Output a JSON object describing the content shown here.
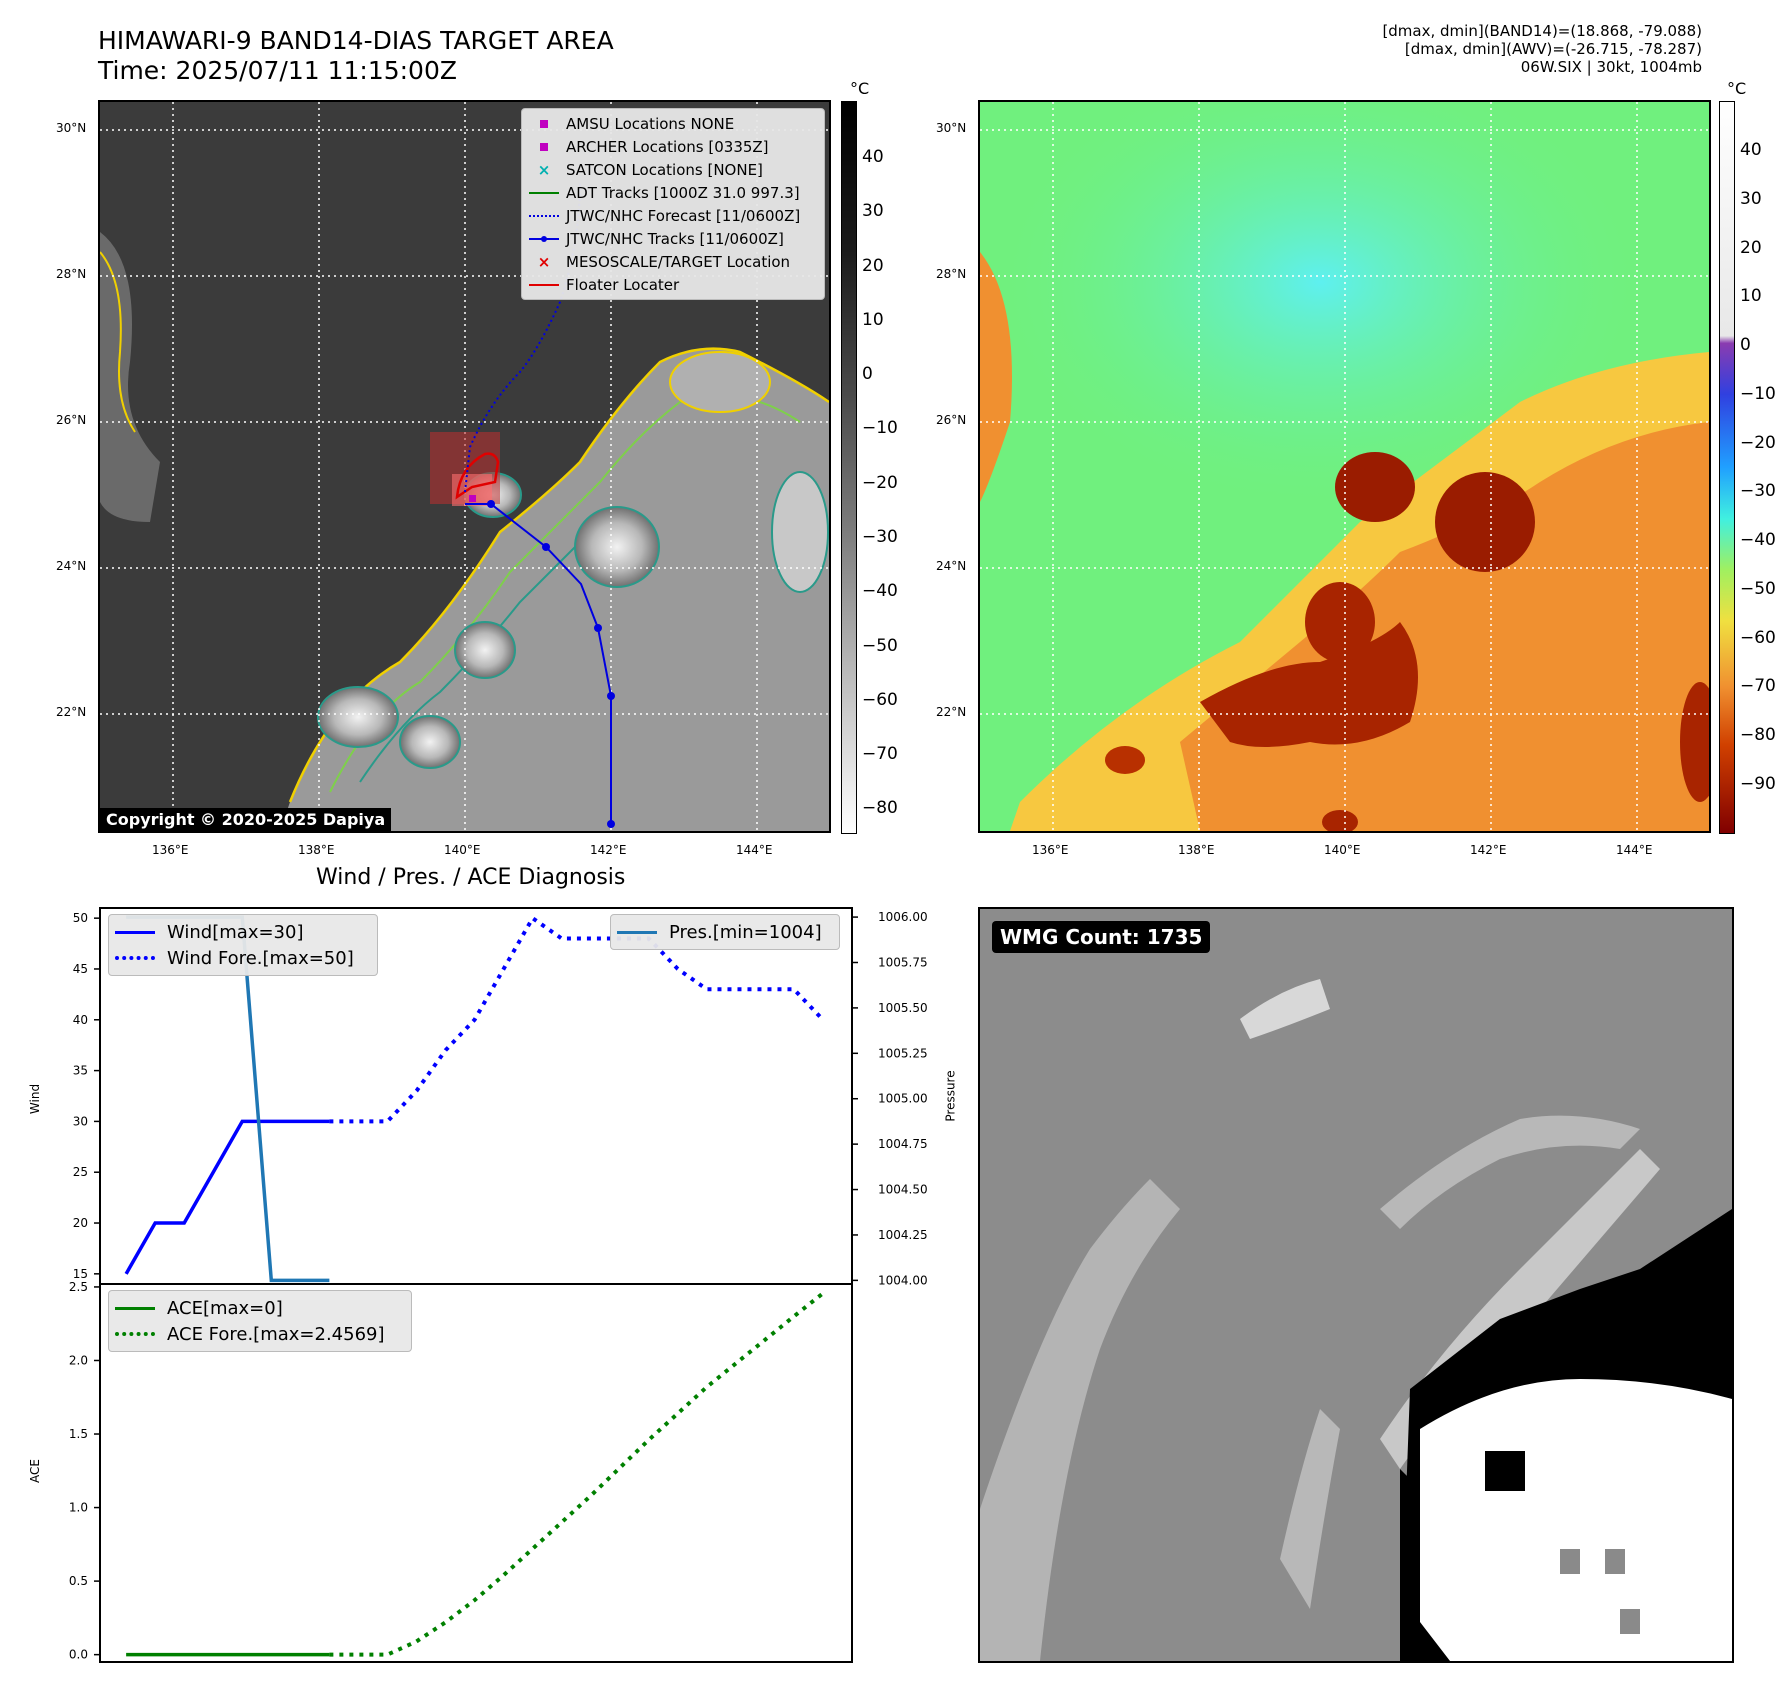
{
  "header": {
    "title_line1": "HIMAWARI-9 BAND14-DIAS TARGET AREA",
    "title_line2": "Time: 2025/07/11 11:15:00Z",
    "info_line1": "[dmax, dmin](BAND14)=(18.868, -79.088)",
    "info_line2": "[dmax, dmin](AWV)=(-26.715, -78.287)",
    "info_line3": "06W.SIX | 30kt, 1004mb"
  },
  "map": {
    "lat_labels": [
      "30°N",
      "28°N",
      "26°N",
      "24°N",
      "22°N"
    ],
    "lon_labels": [
      "136°E",
      "138°E",
      "140°E",
      "142°E",
      "144°E"
    ],
    "copyright": "Copyright © 2020-2025 Dapiya",
    "unit": "°C"
  },
  "colorbar_ir": {
    "ticks": [
      "40",
      "30",
      "20",
      "10",
      "0",
      "−10",
      "−20",
      "−30",
      "−40",
      "−50",
      "−60",
      "−70",
      "−80"
    ]
  },
  "colorbar_awv": {
    "ticks": [
      "40",
      "30",
      "20",
      "10",
      "0",
      "−10",
      "−20",
      "−30",
      "−40",
      "−50",
      "−60",
      "−70",
      "−80",
      "−90"
    ]
  },
  "legend": {
    "items": [
      {
        "label": "AMSU Locations NONE",
        "color": "#c000c0",
        "symbol": "square"
      },
      {
        "label": "ARCHER Locations [0335Z]",
        "color": "#c000c0",
        "symbol": "square"
      },
      {
        "label": "SATCON Locations [NONE]",
        "color": "#00b0b0",
        "symbol": "x"
      },
      {
        "label": "ADT Tracks [1000Z 31.0 997.3]",
        "color": "#008000",
        "symbol": "line"
      },
      {
        "label": "JTWC/NHC Forecast [11/0600Z]",
        "color": "#0000e0",
        "symbol": "dotted"
      },
      {
        "label": "JTWC/NHC Tracks [11/0600Z]",
        "color": "#0000e0",
        "symbol": "line-dot"
      },
      {
        "label": "MESOSCALE/TARGET Location",
        "color": "#e00000",
        "symbol": "x"
      },
      {
        "label": "Floater Locater",
        "color": "#e00000",
        "symbol": "line"
      }
    ]
  },
  "diagnosis": {
    "title": "Wind / Pres. / ACE Diagnosis",
    "wind_ylabel": "Wind",
    "pres_ylabel": "Pressure",
    "ace_ylabel": "ACE",
    "legend_wind": "Wind[max=30]",
    "legend_wind_fore": "Wind Fore.[max=50]",
    "legend_pres": "Pres.[min=1004]",
    "legend_ace": "ACE[max=0]",
    "legend_ace_fore": "ACE Fore.[max=2.4569]"
  },
  "wmg": {
    "label": "WMG Count: 1735"
  },
  "chart_data": [
    {
      "type": "line",
      "title": "Wind / Pres. / ACE Diagnosis",
      "ylabel": "Wind",
      "ylim": [
        14,
        51
      ],
      "yticks": [
        15,
        20,
        25,
        30,
        35,
        40,
        45,
        50
      ],
      "series": [
        {
          "name": "Wind[max=30]",
          "color": "#0000ff",
          "style": "solid",
          "x": [
            0,
            1,
            2,
            3,
            4,
            5,
            6,
            7
          ],
          "values": [
            15,
            20,
            20,
            25,
            30,
            30,
            30,
            30
          ]
        },
        {
          "name": "Wind Fore.[max=50]",
          "color": "#0000ff",
          "style": "dotted",
          "x": [
            7,
            8,
            9,
            10,
            11,
            12,
            13,
            14,
            15,
            16,
            17,
            18,
            19,
            20,
            21,
            22,
            23,
            24
          ],
          "values": [
            30,
            30,
            30,
            33,
            37,
            40,
            45,
            50,
            48,
            48,
            48,
            48,
            45,
            43,
            43,
            43,
            43,
            40
          ]
        }
      ]
    },
    {
      "type": "line",
      "ylabel": "Pressure",
      "ylim": [
        1003.98,
        1006.05
      ],
      "yticks": [
        1004.0,
        1004.25,
        1004.5,
        1004.75,
        1005.0,
        1005.25,
        1005.5,
        1005.75,
        1006.0
      ],
      "series": [
        {
          "name": "Pres.[min=1004]",
          "color": "#1f77b4",
          "style": "solid",
          "x": [
            0,
            1,
            2,
            3,
            4,
            5,
            6,
            7
          ],
          "values": [
            1006,
            1006,
            1006,
            1006,
            1006,
            1004,
            1004,
            1004
          ]
        }
      ]
    },
    {
      "type": "line",
      "ylabel": "ACE",
      "ylim": [
        -0.05,
        2.52
      ],
      "yticks": [
        0.0,
        0.5,
        1.0,
        1.5,
        2.0,
        2.5
      ],
      "series": [
        {
          "name": "ACE[max=0]",
          "color": "#008000",
          "style": "solid",
          "x": [
            0,
            1,
            2,
            3,
            4,
            5,
            6,
            7
          ],
          "values": [
            0,
            0,
            0,
            0,
            0,
            0,
            0,
            0
          ]
        },
        {
          "name": "ACE Fore.[max=2.4569]",
          "color": "#008000",
          "style": "dotted",
          "x": [
            7,
            8,
            9,
            10,
            11,
            12,
            13,
            14,
            15,
            16,
            17,
            18,
            19,
            20,
            21,
            22,
            23,
            24
          ],
          "values": [
            0,
            0,
            0,
            0.09,
            0.22,
            0.37,
            0.54,
            0.72,
            0.9,
            1.08,
            1.27,
            1.46,
            1.64,
            1.82,
            1.98,
            2.14,
            2.3,
            2.4569
          ]
        }
      ]
    }
  ]
}
